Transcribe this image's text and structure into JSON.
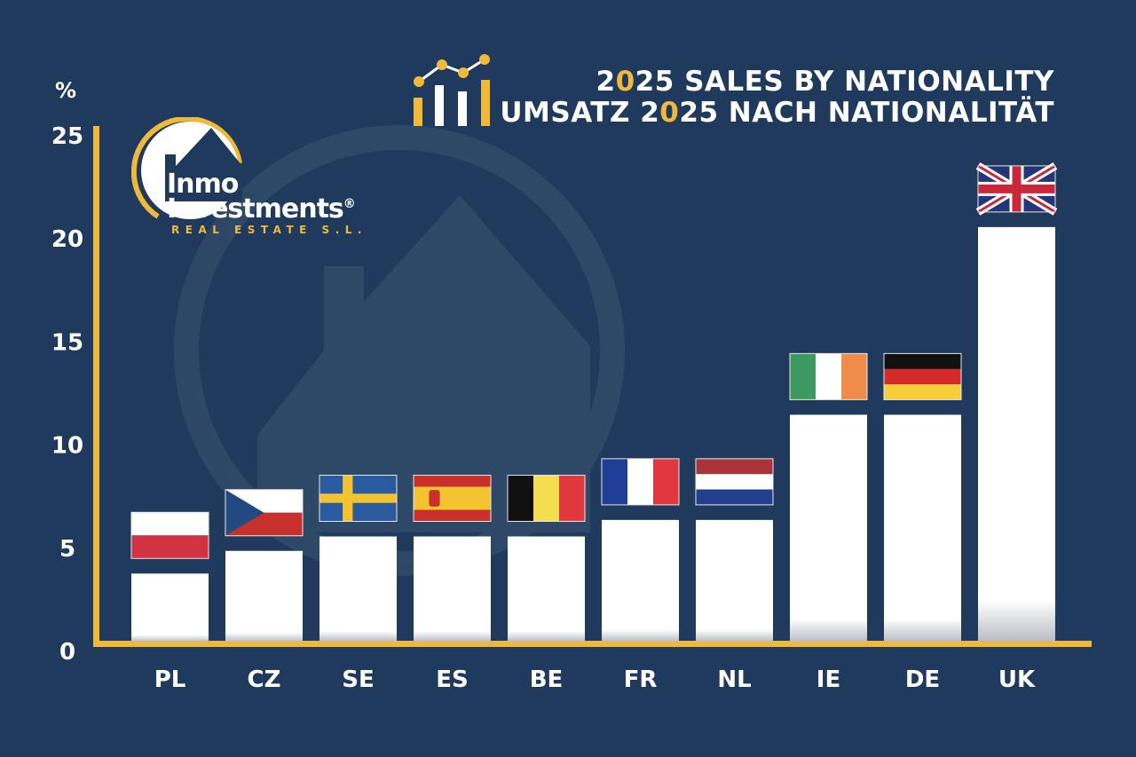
{
  "title": {
    "line1": [
      "2",
      "0",
      "25 SALES BY NATIONALITY"
    ],
    "line2": [
      "UMSATZ 2",
      "0",
      "25 NACH NATIONALITÄT"
    ]
  },
  "logo": {
    "line1": "Inmo",
    "line2": "Investments",
    "registered": "®",
    "tagline": "REAL ESTATE S.L."
  },
  "colors": {
    "background": "#1f3a5c",
    "axis": "#f0b93a",
    "bar": "#ffffff",
    "accent": "#f0b93a"
  },
  "chart_data": {
    "type": "bar",
    "title": "2025 SALES BY NATIONALITY / UMSATZ 2025 NACH NATIONALITÄT",
    "ylabel": "%",
    "xlabel": "",
    "ylim": [
      0,
      25
    ],
    "yticks": [
      "0",
      "5",
      "10",
      "15",
      "20",
      "25"
    ],
    "grid": false,
    "categories": [
      "PL",
      "CZ",
      "SE",
      "ES",
      "BE",
      "FR",
      "NL",
      "IE",
      "DE",
      "UK"
    ],
    "values": [
      3.3,
      4.4,
      5.1,
      5.1,
      5.1,
      5.9,
      5.9,
      11.0,
      11.0,
      20.1
    ],
    "flag_icons": [
      "poland-flag-icon",
      "czech-flag-icon",
      "sweden-flag-icon",
      "spain-flag-icon",
      "belgium-flag-icon",
      "france-flag-icon",
      "netherlands-flag-icon",
      "ireland-flag-icon",
      "germany-flag-icon",
      "uk-flag-icon"
    ]
  }
}
